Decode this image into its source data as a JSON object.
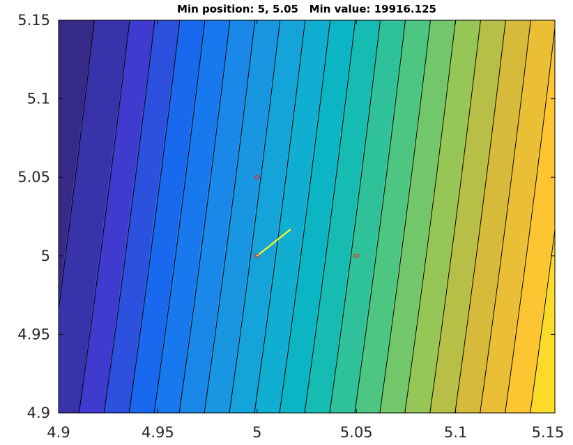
{
  "chart_data": {
    "type": "contour",
    "title": "Min position: 5, 5.05   Min value: 19916.125",
    "xlim": [
      4.9,
      5.15
    ],
    "ylim": [
      4.9,
      5.15
    ],
    "x_ticks": [
      4.9,
      4.95,
      5,
      5.05,
      5.1,
      5.15
    ],
    "x_tick_labels": [
      "4.9",
      "4.95",
      "5",
      "5.05",
      "5.1",
      "5.15"
    ],
    "y_ticks": [
      4.9,
      4.95,
      5,
      5.05,
      5.1,
      5.15
    ],
    "y_tick_labels": [
      "4.9",
      "4.95",
      "5",
      "5.05",
      "5.1",
      "5.15"
    ],
    "grid": false,
    "colormap": "parula",
    "contour_level_count": 19,
    "red_points": [
      {
        "x": 5.0,
        "y": 5.05
      },
      {
        "x": 5.0,
        "y": 5.0
      },
      {
        "x": 5.05,
        "y": 5.0
      }
    ],
    "yellow_path": {
      "x": [
        5.0,
        5.017
      ],
      "y": [
        5.0,
        5.017
      ]
    },
    "colors": {
      "marker": "#e8262a",
      "path": "#ffff1a",
      "contour_line": "#000000"
    }
  }
}
